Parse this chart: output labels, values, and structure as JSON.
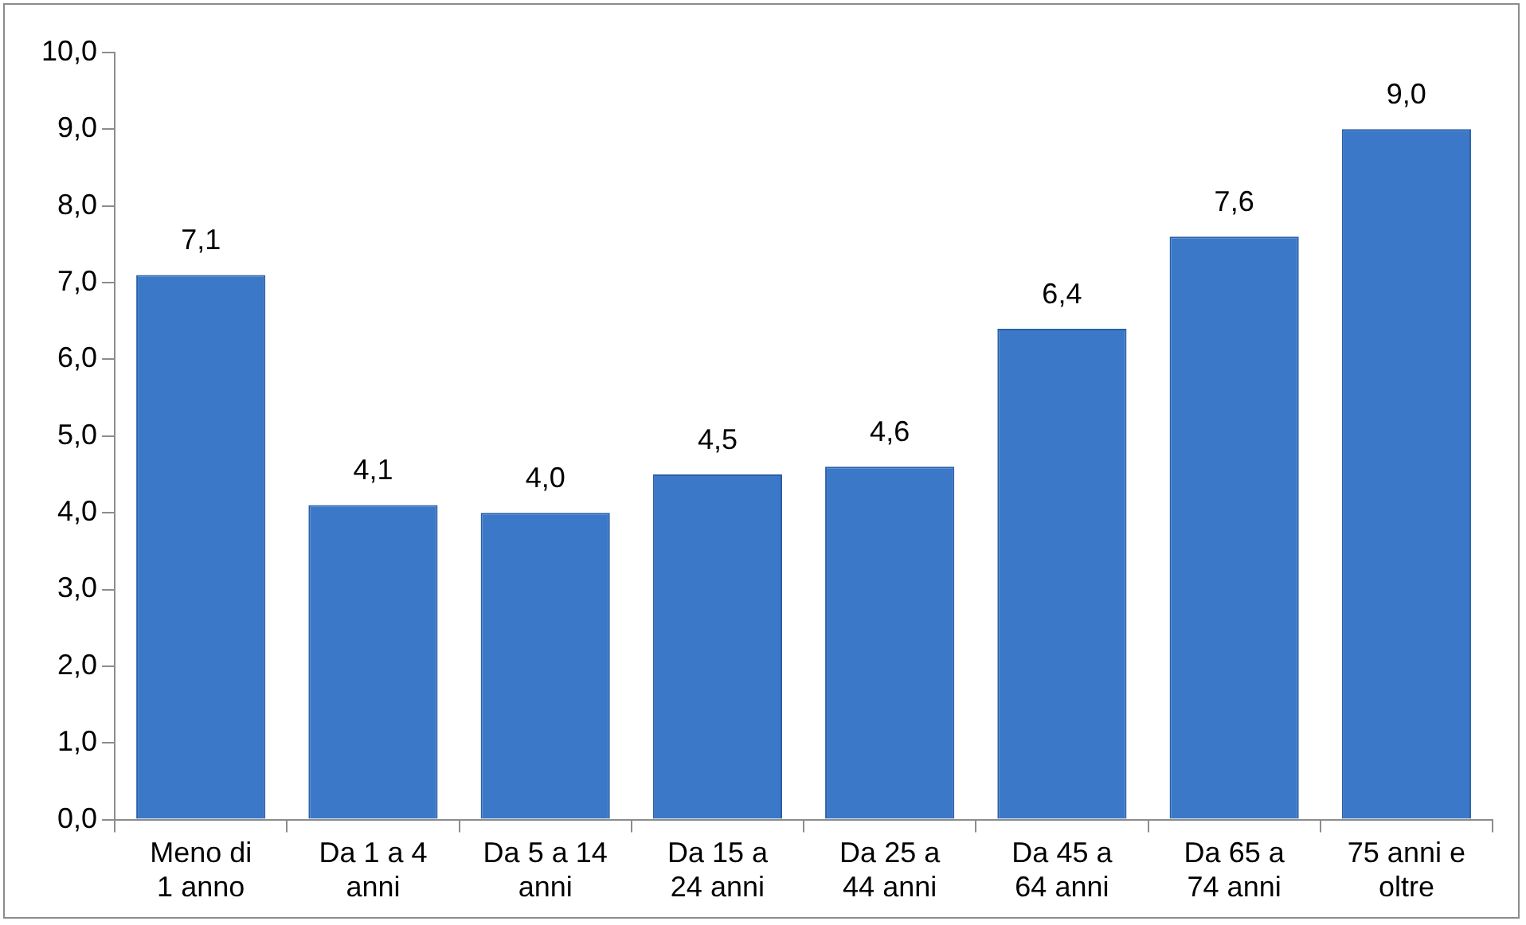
{
  "chart_data": {
    "type": "bar",
    "categories": [
      "Meno di\n1 anno",
      "Da 1 a 4\nanni",
      "Da 5 a 14\nanni",
      "Da 15 a\n24 anni",
      "Da 25 a\n44 anni",
      "Da 45 a\n64 anni",
      "Da 65 a\n74 anni",
      "75 anni e\noltre"
    ],
    "values": [
      7.1,
      4.1,
      4.0,
      4.5,
      4.6,
      6.4,
      7.6,
      9.0
    ],
    "value_labels": [
      "7,1",
      "4,1",
      "4,0",
      "4,5",
      "4,6",
      "6,4",
      "7,6",
      "9,0"
    ],
    "color": "#3b78c8",
    "ylim": [
      0,
      10
    ],
    "yticks": [
      {
        "value": 0,
        "label": "0,0"
      },
      {
        "value": 1,
        "label": "1,0"
      },
      {
        "value": 2,
        "label": "2,0"
      },
      {
        "value": 3,
        "label": "3,0"
      },
      {
        "value": 4,
        "label": "4,0"
      },
      {
        "value": 5,
        "label": "5,0"
      },
      {
        "value": 6,
        "label": "6,0"
      },
      {
        "value": 7,
        "label": "7,0"
      },
      {
        "value": 8,
        "label": "8,0"
      },
      {
        "value": 9,
        "label": "9,0"
      },
      {
        "value": 10,
        "label": "10,0"
      }
    ]
  }
}
